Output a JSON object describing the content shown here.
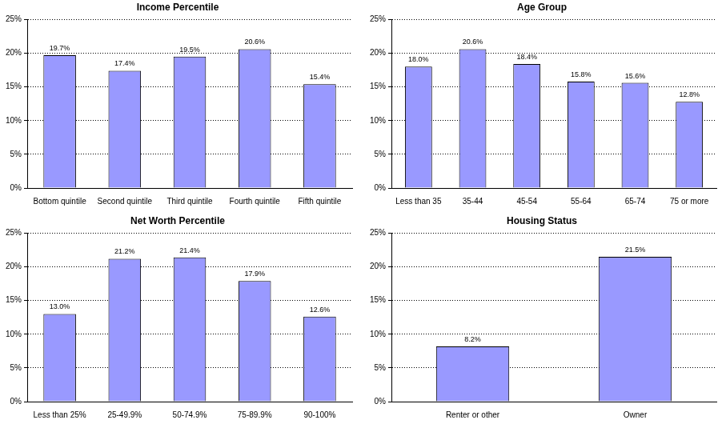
{
  "chart_data": [
    {
      "type": "bar",
      "title": "Income Percentile",
      "categories": [
        "Bottom quintile",
        "Second quintile",
        "Third quintile",
        "Fourth quintile",
        "Fifth quintile"
      ],
      "values": [
        19.7,
        17.4,
        19.5,
        20.6,
        15.4
      ],
      "value_labels": [
        "19.7%",
        "17.4%",
        "19.5%",
        "20.6%",
        "15.4%"
      ],
      "color": "#9999ff",
      "ylim": [
        0,
        25
      ],
      "yticks": [
        {
          "value": 0,
          "label": "0%"
        },
        {
          "value": 5,
          "label": "5%"
        },
        {
          "value": 10,
          "label": "10%"
        },
        {
          "value": 15,
          "label": "15%"
        },
        {
          "value": 20,
          "label": "20%"
        },
        {
          "value": 25,
          "label": "25%"
        }
      ],
      "grid": true,
      "data_labels": true
    },
    {
      "type": "bar",
      "title": "Age Group",
      "categories": [
        "Less than 35",
        "35-44",
        "45-54",
        "55-64",
        "65-74",
        "75 or more"
      ],
      "values": [
        18.0,
        20.6,
        18.4,
        15.8,
        15.6,
        12.8
      ],
      "value_labels": [
        "18.0%",
        "20.6%",
        "18.4%",
        "15.8%",
        "15.6%",
        "12.8%"
      ],
      "color": "#9999ff",
      "ylim": [
        0,
        25
      ],
      "yticks": [
        {
          "value": 0,
          "label": "0%"
        },
        {
          "value": 5,
          "label": "5%"
        },
        {
          "value": 10,
          "label": "10%"
        },
        {
          "value": 15,
          "label": "15%"
        },
        {
          "value": 20,
          "label": "20%"
        },
        {
          "value": 25,
          "label": "25%"
        }
      ],
      "grid": true,
      "data_labels": true
    },
    {
      "type": "bar",
      "title": "Net Worth Percentile",
      "categories": [
        "Less than 25%",
        "25-49.9%",
        "50-74.9%",
        "75-89.9%",
        "90-100%"
      ],
      "values": [
        13.0,
        21.2,
        21.4,
        17.9,
        12.6
      ],
      "value_labels": [
        "13.0%",
        "21.2%",
        "21.4%",
        "17.9%",
        "12.6%"
      ],
      "color": "#9999ff",
      "ylim": [
        0,
        25
      ],
      "yticks": [
        {
          "value": 0,
          "label": "0%"
        },
        {
          "value": 5,
          "label": "5%"
        },
        {
          "value": 10,
          "label": "10%"
        },
        {
          "value": 15,
          "label": "15%"
        },
        {
          "value": 20,
          "label": "20%"
        },
        {
          "value": 25,
          "label": "25%"
        }
      ],
      "grid": true,
      "data_labels": true
    },
    {
      "type": "bar",
      "title": "Housing Status",
      "categories": [
        "Renter or other",
        "Owner"
      ],
      "values": [
        8.2,
        21.5
      ],
      "value_labels": [
        "8.2%",
        "21.5%"
      ],
      "color": "#9999ff",
      "ylim": [
        0,
        25
      ],
      "yticks": [
        {
          "value": 0,
          "label": "0%"
        },
        {
          "value": 5,
          "label": "5%"
        },
        {
          "value": 10,
          "label": "10%"
        },
        {
          "value": 15,
          "label": "15%"
        },
        {
          "value": 20,
          "label": "20%"
        },
        {
          "value": 25,
          "label": "25%"
        }
      ],
      "grid": true,
      "data_labels": true
    }
  ]
}
